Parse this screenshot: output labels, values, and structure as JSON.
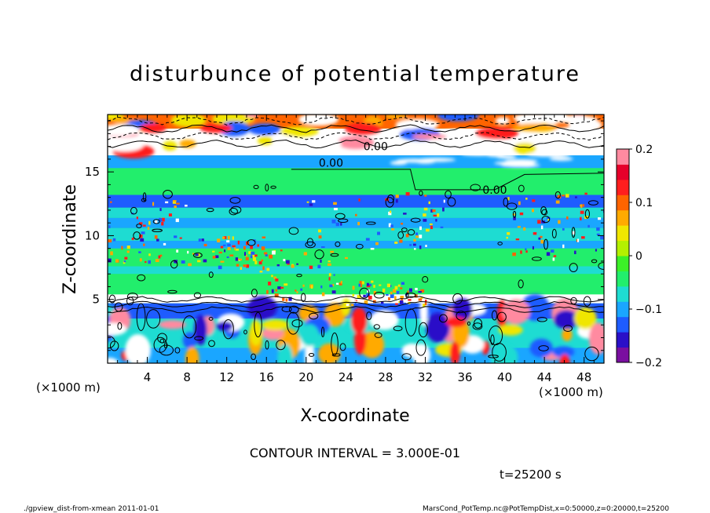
{
  "chart_data": {
    "type": "heatmap",
    "title": "disturbunce of potential temperature",
    "xlabel": "X-coordinate",
    "ylabel": "Z-coordinate",
    "x_unit": "(×1000 m)",
    "y_unit": "(×1000 m)",
    "xlim": [
      0,
      50
    ],
    "ylim": [
      0,
      19.5
    ],
    "x_ticks": [
      4,
      8,
      12,
      16,
      20,
      24,
      28,
      32,
      36,
      40,
      44,
      48
    ],
    "y_ticks": [
      5,
      10,
      15
    ],
    "colorbar": {
      "range": [
        -0.2,
        0.2
      ],
      "tick_values": [
        -0.2,
        -0.1,
        0,
        0.1,
        0.2
      ],
      "tick_labels": [
        "−0.2",
        "−0.1",
        "0",
        "0.1",
        "0.2"
      ],
      "colors": [
        "#7a0fa0",
        "#2a10c8",
        "#1e5cff",
        "#1aa6ff",
        "#1edcd2",
        "#22ee6c",
        "#3cf028",
        "#b4f000",
        "#f0e600",
        "#ffaa00",
        "#ff6400",
        "#ff1e1e",
        "#e6002a",
        "#ff8aa0"
      ]
    },
    "contour_labels": [
      {
        "text": "0.00",
        "x": 27,
        "z": 16.7
      },
      {
        "text": "0.00",
        "x": 22.5,
        "z": 15.4
      },
      {
        "text": "0.00",
        "x": 39,
        "z": 13.3
      }
    ],
    "annotations": {
      "contour_interval": "CONTOUR INTERVAL = 3.000E-01",
      "time": "t=25200 s"
    }
  },
  "footer": {
    "left": "./gpview_dist-from-xmean  2011-01-01",
    "right": "MarsCond_PotTemp.nc@PotTempDist,x=0:50000,z=0:20000,t=25200"
  }
}
